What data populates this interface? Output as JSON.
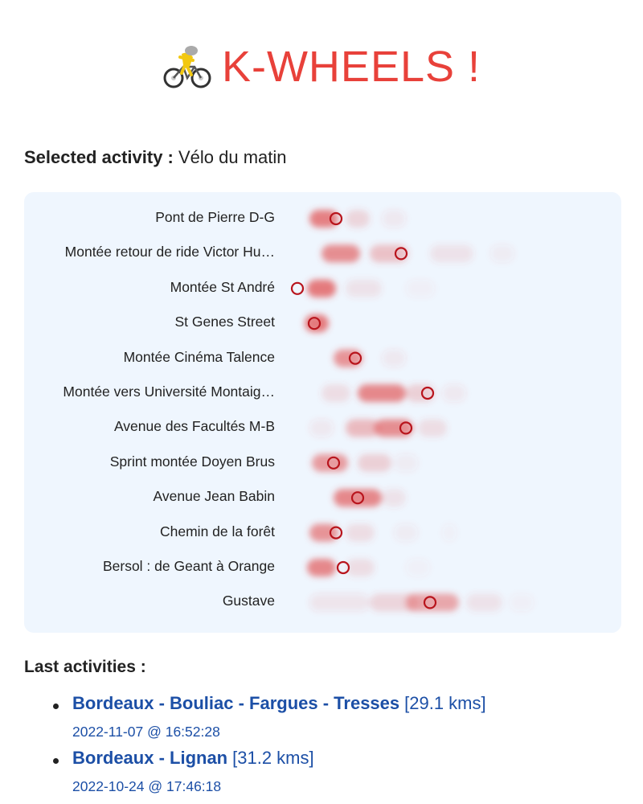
{
  "header": {
    "logo_icon": "cyclist-icon",
    "title": "K-WHEELS !",
    "accent_color": "#e8413a"
  },
  "selected_activity": {
    "label": "Selected activity :",
    "value": "Vélo du matin"
  },
  "segments": [
    {
      "name": "Pont de Pierre D-G",
      "current_fraction": 0.16
    },
    {
      "name": "Montée retour de ride Victor Hu…",
      "current_fraction": 0.43
    },
    {
      "name": "Montée St André",
      "current_fraction": 0.0
    },
    {
      "name": "St Genes Street",
      "current_fraction": 0.07
    },
    {
      "name": "Montée Cinéma Talence",
      "current_fraction": 0.24
    },
    {
      "name": "Montée vers Université Montaig…",
      "current_fraction": 0.54
    },
    {
      "name": "Avenue des Facultés M-B",
      "current_fraction": 0.45
    },
    {
      "name": "Sprint montée Doyen Brus",
      "current_fraction": 0.15
    },
    {
      "name": "Avenue Jean Babin",
      "current_fraction": 0.25
    },
    {
      "name": "Chemin de la forêt",
      "current_fraction": 0.16
    },
    {
      "name": "Bersol : de Geant à Orange",
      "current_fraction": 0.19
    },
    {
      "name": "Gustave",
      "current_fraction": 0.55
    }
  ],
  "last_activities": {
    "title": "Last activities :",
    "items": [
      {
        "name": "Bordeaux - Bouliac - Fargues - Tresses",
        "distance": "[29.1 kms]",
        "date": "2022-11-07 @ 16:52:28"
      },
      {
        "name": "Bordeaux - Lignan",
        "distance": "[31.2 kms]",
        "date": "2022-10-24 @ 17:46:18"
      }
    ]
  }
}
